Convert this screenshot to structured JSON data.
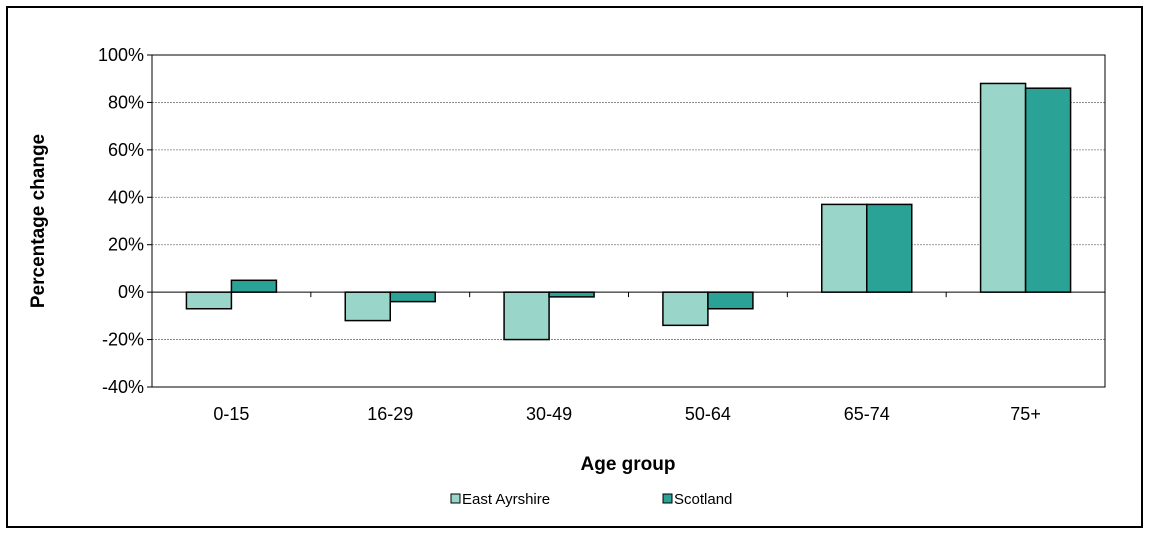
{
  "chart_data": {
    "type": "bar",
    "title": "",
    "xlabel": "Age group",
    "ylabel": "Percentage change",
    "categories": [
      "0-15",
      "16-29",
      "30-49",
      "50-64",
      "65-74",
      "75+"
    ],
    "series": [
      {
        "name": "East Ayrshire",
        "values": [
          -7,
          -12,
          -20,
          -14,
          37,
          88
        ],
        "color": "#99d5c9"
      },
      {
        "name": "Scotland",
        "values": [
          5,
          -4,
          -2,
          -7,
          37,
          86
        ],
        "color": "#2aa296"
      }
    ],
    "ylim": [
      -40,
      100
    ],
    "yticks": [
      -40,
      -20,
      0,
      20,
      40,
      60,
      80,
      100
    ],
    "ytick_labels": [
      "-40%",
      "-20%",
      "0%",
      "20%",
      "40%",
      "60%",
      "80%",
      "100%"
    ],
    "grid": true,
    "legend_position": "bottom"
  }
}
